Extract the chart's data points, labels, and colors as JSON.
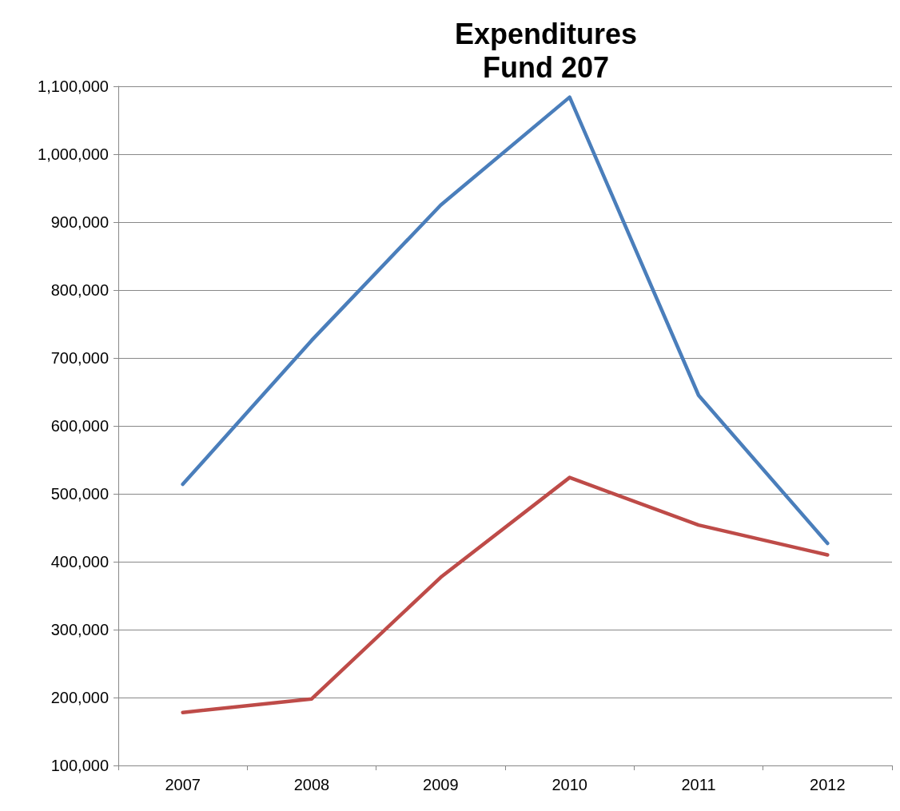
{
  "chart_data": {
    "type": "line",
    "title": "Expenditures\nFund 207",
    "categories": [
      "2007",
      "2008",
      "2009",
      "2010",
      "2011",
      "2012"
    ],
    "series": [
      {
        "color": "#4a7ebb",
        "values": [
          514000,
          726000,
          925000,
          1084000,
          645000,
          427000
        ]
      },
      {
        "color": "#be4b48",
        "values": [
          178000,
          198000,
          377000,
          524000,
          454000,
          410000
        ]
      }
    ],
    "ylim": [
      100000,
      1100000
    ],
    "yticks": [
      {
        "value": 100000,
        "label": "100,000"
      },
      {
        "value": 200000,
        "label": "200,000"
      },
      {
        "value": 300000,
        "label": "300,000"
      },
      {
        "value": 400000,
        "label": "400,000"
      },
      {
        "value": 500000,
        "label": "500,000"
      },
      {
        "value": 600000,
        "label": "600,000"
      },
      {
        "value": 700000,
        "label": "700,000"
      },
      {
        "value": 800000,
        "label": "800,000"
      },
      {
        "value": 900000,
        "label": "900,000"
      },
      {
        "value": 1000000,
        "label": "1,000,000"
      },
      {
        "value": 1100000,
        "label": "1,100,000"
      }
    ],
    "grid": "y",
    "marker": "none",
    "line_style": "solid"
  }
}
